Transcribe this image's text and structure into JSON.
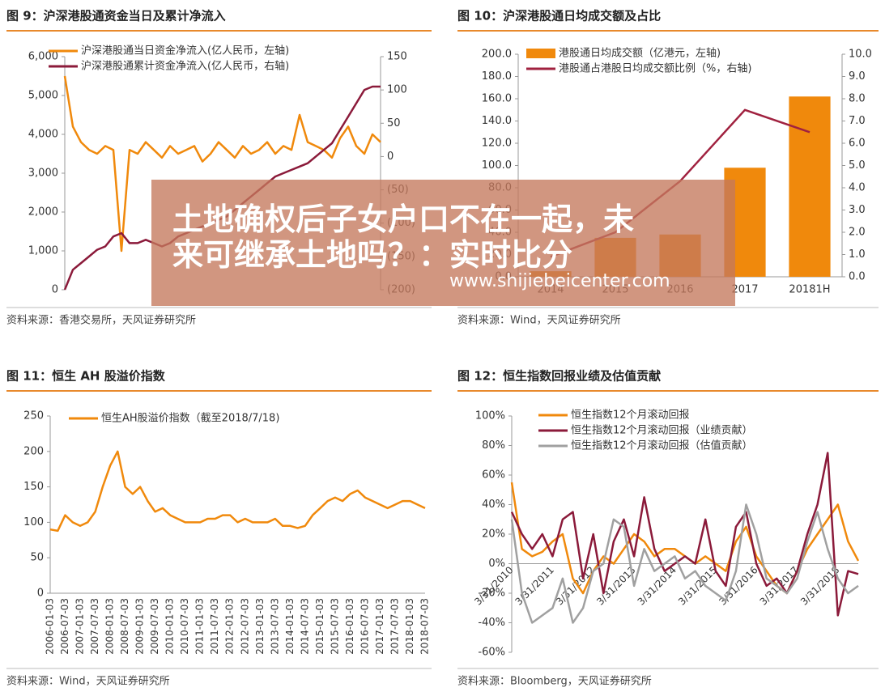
{
  "chart_data": [
    {
      "type": "line",
      "title": "图 9：沪深港股通资金当日及累计净流入",
      "source": "资料来源：香港交易所，天风证券研究所",
      "ylim": [
        0,
        6000
      ],
      "yticks": [
        0,
        {
          "value": 1000,
          "label": "1,000"
        },
        {
          "value": 2000,
          "label": "2,000"
        },
        {
          "value": 3000,
          "label": "3,000"
        },
        {
          "value": 4000,
          "label": "4,000"
        },
        {
          "value": 5000,
          "label": "5,000"
        },
        {
          "value": 6000,
          "label": "6,000"
        }
      ],
      "y2lim": [
        -200,
        150
      ],
      "y2ticks": [
        {
          "value": -200,
          "label": "(200)"
        },
        {
          "value": -150,
          "label": "(150)"
        },
        {
          "value": -100,
          "label": "(100)"
        },
        {
          "value": -50,
          "label": "(50)"
        },
        0,
        50,
        100,
        150
      ],
      "series": [
        {
          "name": "沪深港股通当日资金净流入(亿人民币，左轴)",
          "color": "#f0890c",
          "values": [
            5500,
            4200,
            3800,
            3600,
            3500,
            3700,
            3600,
            1000,
            3600,
            3500,
            3800,
            3600,
            3400,
            3700,
            3500,
            3600,
            3700,
            3300,
            3500,
            3800,
            3600,
            3400,
            3700,
            3500,
            3600,
            3800,
            3500,
            3700,
            3600,
            4500,
            3800,
            3700,
            3600,
            3400,
            3900,
            4200,
            3700,
            3500,
            4000,
            3800
          ]
        },
        {
          "name": "沪深港股通累计资金净流入(亿人民币，右轴)",
          "color": "#8b1a3a",
          "axis": "y2",
          "values": [
            -200,
            -170,
            -160,
            -150,
            -140,
            -135,
            -120,
            -115,
            -130,
            -130,
            -125,
            -130,
            -135,
            -130,
            -120,
            -115,
            -110,
            -105,
            -100,
            -95,
            -90,
            -80,
            -70,
            -60,
            -50,
            -40,
            -30,
            -25,
            -20,
            -15,
            -10,
            0,
            10,
            20,
            40,
            60,
            80,
            100,
            105,
            105
          ]
        }
      ]
    },
    {
      "type": "bar",
      "title": "图 10：沪深港股通日均成交额及占比",
      "source": "资料来源：Wind，天风证券研究所",
      "categories": [
        "2014",
        "2015",
        "2016",
        "2017",
        "20181H"
      ],
      "ylim": [
        0,
        200
      ],
      "yticks": [
        {
          "value": 0,
          "label": "0.0"
        },
        {
          "value": 20,
          "label": "20.0"
        },
        {
          "value": 40,
          "label": "40.0"
        },
        {
          "value": 60,
          "label": "60.0"
        },
        {
          "value": 80,
          "label": "80.0"
        },
        {
          "value": 100,
          "label": "100.0"
        },
        {
          "value": 120,
          "label": "120.0"
        },
        {
          "value": 140,
          "label": "140.0"
        },
        {
          "value": 160,
          "label": "160.0"
        },
        {
          "value": 180,
          "label": "180.0"
        },
        {
          "value": 200,
          "label": "200.0"
        }
      ],
      "y2lim": [
        0,
        10
      ],
      "y2ticks": [
        {
          "value": 0,
          "label": "0.0"
        },
        {
          "value": 1,
          "label": "1.0"
        },
        {
          "value": 2,
          "label": "2.0"
        },
        {
          "value": 3,
          "label": "3.0"
        },
        {
          "value": 4,
          "label": "4.0"
        },
        {
          "value": 5,
          "label": "5.0"
        },
        {
          "value": 6,
          "label": "6.0"
        },
        {
          "value": 7,
          "label": "7.0"
        },
        {
          "value": 8,
          "label": "8.0"
        },
        {
          "value": 9,
          "label": "9.0"
        },
        {
          "value": 10,
          "label": "10.0"
        }
      ],
      "series": [
        {
          "name": "港股通日均成交额（亿港元，左轴)",
          "color": "#f0890c",
          "type": "bar",
          "values": [
            5,
            35,
            38,
            98,
            162
          ]
        },
        {
          "name": "港股通占港股日均成交额比例（%，右轴)",
          "color": "#a0213f",
          "type": "line",
          "axis": "y2",
          "values": [
            0.9,
            2.0,
            4.3,
            7.5,
            6.5
          ]
        }
      ]
    },
    {
      "type": "line",
      "title": "图 11：恒生 AH 股溢价指数",
      "source": "资料来源：Wind，天风证券研究所",
      "categories": [
        "2006-01-03",
        null,
        "2006-07-03",
        null,
        "2007-01-03",
        null,
        "2007-07-03",
        null,
        "2008-01-03",
        null,
        "2008-07-03",
        null,
        "2009-01-03",
        null,
        "2009-07-03",
        null,
        "2010-01-03",
        null,
        "2010-07-03",
        null,
        "2011-01-03",
        null,
        "2011-07-03",
        null,
        "2012-01-03",
        null,
        "2012-07-03",
        null,
        "2013-01-03",
        null,
        "2013-07-03",
        null,
        "2014-01-03",
        null,
        "2014-07-03",
        null,
        "2015-01-03",
        null,
        "2015-07-03",
        null,
        "2016-01-03",
        null,
        "2016-07-03",
        null,
        "2017-01-03",
        null,
        "2017-07-03",
        null,
        "2018-01-03",
        null,
        "2018-07-03"
      ],
      "ylim": [
        0,
        250
      ],
      "yticks": [
        0,
        50,
        100,
        150,
        200,
        250
      ],
      "series": [
        {
          "name": "恒生AH股溢价指数（截至2018/7/18)",
          "color": "#f0890c",
          "values": [
            90,
            88,
            110,
            100,
            95,
            100,
            115,
            150,
            180,
            200,
            150,
            140,
            150,
            130,
            115,
            120,
            110,
            105,
            100,
            100,
            100,
            105,
            105,
            110,
            110,
            100,
            105,
            100,
            100,
            100,
            105,
            95,
            95,
            92,
            95,
            110,
            120,
            130,
            135,
            130,
            140,
            145,
            135,
            130,
            125,
            120,
            125,
            130,
            130,
            125,
            120
          ]
        }
      ]
    },
    {
      "type": "line",
      "title": "图 12：恒生指数回报业绩及估值贡献",
      "source": "资料来源：Bloomberg，天风证券研究所",
      "categories": [
        "3/31/2010",
        null,
        null,
        null,
        "3/31/2011",
        null,
        null,
        null,
        "3/31/2012",
        null,
        null,
        null,
        "3/31/2013",
        null,
        null,
        null,
        "3/31/2014",
        null,
        null,
        null,
        "3/31/2015",
        null,
        null,
        null,
        "3/31/2016",
        null,
        null,
        null,
        "3/31/2017",
        null,
        null,
        null,
        "3/31/2018",
        null,
        null
      ],
      "ylim": [
        -60,
        100
      ],
      "yticks": [
        {
          "value": -60,
          "label": "-60%"
        },
        {
          "value": -40,
          "label": "-40%"
        },
        {
          "value": -20,
          "label": "-20%"
        },
        {
          "value": 0,
          "label": "0%"
        },
        {
          "value": 20,
          "label": "20%"
        },
        {
          "value": 40,
          "label": "40%"
        },
        {
          "value": 60,
          "label": "60%"
        },
        {
          "value": 80,
          "label": "80%"
        },
        {
          "value": 100,
          "label": "100%"
        }
      ],
      "series": [
        {
          "name": "恒生指数12个月滚动回报",
          "color": "#f0890c",
          "values": [
            55,
            10,
            5,
            8,
            15,
            20,
            -10,
            -20,
            -5,
            5,
            0,
            10,
            20,
            15,
            5,
            10,
            10,
            5,
            0,
            5,
            0,
            -5,
            15,
            25,
            5,
            -5,
            -15,
            -20,
            -5,
            10,
            20,
            30,
            40,
            15,
            2
          ]
        },
        {
          "name": "恒生指数12个月滚动回报（业绩贡献）",
          "color": "#8b1a3a",
          "values": [
            35,
            20,
            10,
            20,
            5,
            30,
            35,
            -10,
            20,
            -20,
            15,
            30,
            5,
            45,
            10,
            -5,
            0,
            5,
            0,
            30,
            -5,
            -15,
            25,
            35,
            0,
            -15,
            -10,
            -20,
            -5,
            20,
            40,
            75,
            -35,
            -5,
            -7
          ]
        },
        {
          "name": "恒生指数12个月滚动回报（估值贡献）",
          "color": "#a0a0a0",
          "values": [
            30,
            -20,
            -40,
            -35,
            -30,
            -10,
            -40,
            -30,
            -5,
            0,
            30,
            25,
            -15,
            10,
            -5,
            0,
            5,
            -10,
            -5,
            -15,
            -20,
            -25,
            -5,
            40,
            20,
            -10,
            -15,
            -20,
            -10,
            15,
            35,
            10,
            -10,
            -20,
            -15
          ]
        }
      ]
    }
  ],
  "overlay": {
    "headline": [
      "土地确权后子女户口不在一起，未",
      "来可继承土地吗？：实时比分"
    ],
    "url": "www.shijiebeicenter.com"
  }
}
